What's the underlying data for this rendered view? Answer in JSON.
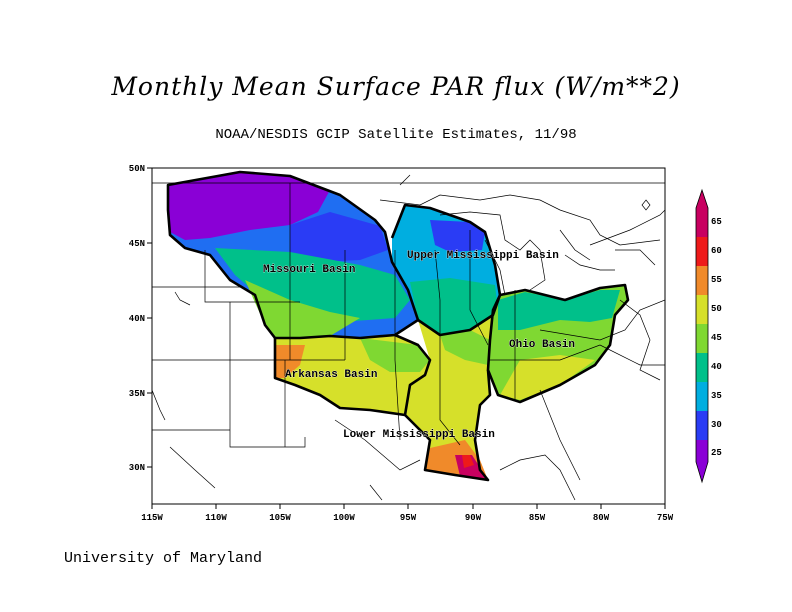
{
  "title": "Monthly Mean Surface PAR flux (W/m**2)",
  "subtitle": "NOAA/NESDIS GCIP Satellite Estimates, 11/98",
  "footer": "University of Maryland",
  "map": {
    "lon_labels": [
      "115W",
      "110W",
      "105W",
      "100W",
      "95W",
      "90W",
      "85W",
      "80W",
      "75W"
    ],
    "lat_labels": [
      "30N",
      "35N",
      "40N",
      "45N",
      "50N"
    ],
    "basins": [
      {
        "name": "Missouri Basin",
        "color": "#000000"
      },
      {
        "name": "Upper Mississippi Basin",
        "color": "#000000"
      },
      {
        "name": "Ohio Basin",
        "color": "#000000"
      },
      {
        "name": "Arkansas Basin",
        "color": "#000000"
      },
      {
        "name": "Lower Mississippi Basin",
        "color": "#000000"
      }
    ]
  },
  "colorbar": {
    "labels": [
      "25",
      "30",
      "35",
      "40",
      "45",
      "50",
      "55",
      "60",
      "65"
    ],
    "colors": [
      "#8a00d6",
      "#2a3cf5",
      "#00aee0",
      "#00c08a",
      "#7fd832",
      "#d6e02a",
      "#f08a2a",
      "#ee1a1a",
      "#c80060"
    ]
  }
}
